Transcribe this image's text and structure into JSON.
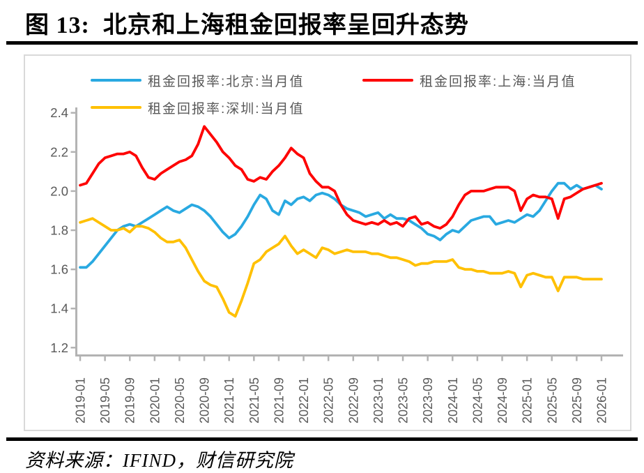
{
  "header": {
    "title": "图 13:  北京和上海租金回报率呈回升态势"
  },
  "footer": {
    "source": "资料来源：IFIND，财信研究院"
  },
  "chart_data": {
    "type": "line",
    "title": "",
    "xlabel": "",
    "ylabel": "",
    "ylim": [
      1.2,
      2.4
    ],
    "y_ticks": [
      "2.4",
      "2.2",
      "2.0",
      "1.8",
      "1.6",
      "1.4",
      "1.2"
    ],
    "x_tick_labels": [
      "2019-01",
      "2019-05",
      "2019-09",
      "2020-01",
      "2020-05",
      "2020-09",
      "2021-01",
      "2021-05",
      "2021-09",
      "2022-01",
      "2022-05",
      "2022-09",
      "2023-01",
      "2023-05",
      "2023-09",
      "2024-01",
      "2024-05",
      "2024-09",
      "2025-01",
      "2025-05",
      "2025-09",
      "2026-01"
    ],
    "x": [
      "2019-01",
      "2019-02",
      "2019-03",
      "2019-04",
      "2019-05",
      "2019-06",
      "2019-07",
      "2019-08",
      "2019-09",
      "2019-10",
      "2019-11",
      "2019-12",
      "2020-01",
      "2020-02",
      "2020-03",
      "2020-04",
      "2020-05",
      "2020-06",
      "2020-07",
      "2020-08",
      "2020-09",
      "2020-10",
      "2020-11",
      "2020-12",
      "2021-01",
      "2021-02",
      "2021-03",
      "2021-04",
      "2021-05",
      "2021-06",
      "2021-07",
      "2021-08",
      "2021-09",
      "2021-10",
      "2021-11",
      "2021-12",
      "2022-01",
      "2022-02",
      "2022-03",
      "2022-04",
      "2022-05",
      "2022-06",
      "2022-07",
      "2022-08",
      "2022-09",
      "2022-10",
      "2022-11",
      "2022-12",
      "2023-01",
      "2023-02",
      "2023-03",
      "2023-04",
      "2023-05",
      "2023-06",
      "2023-07",
      "2023-08",
      "2023-09",
      "2023-10",
      "2023-11",
      "2023-12",
      "2024-01",
      "2024-02",
      "2024-03",
      "2024-04",
      "2024-05",
      "2024-06",
      "2024-07",
      "2024-08",
      "2024-09",
      "2024-10",
      "2024-11",
      "2024-12",
      "2025-01",
      "2025-02",
      "2025-03",
      "2025-04",
      "2025-05",
      "2025-06",
      "2025-07",
      "2025-08",
      "2025-09",
      "2025-10",
      "2025-11",
      "2025-12",
      "2026-01"
    ],
    "grid": false,
    "legend_position": "top-inside",
    "axis_color": "#B3B3B3",
    "tick_label_color": "#595959",
    "series": [
      {
        "name": "租金回报率:北京:当月值",
        "color": "#29A9E1",
        "values": [
          1.61,
          1.61,
          1.64,
          1.68,
          1.72,
          1.76,
          1.8,
          1.82,
          1.83,
          1.82,
          1.84,
          1.86,
          1.88,
          1.9,
          1.92,
          1.9,
          1.89,
          1.91,
          1.93,
          1.92,
          1.9,
          1.87,
          1.83,
          1.79,
          1.76,
          1.78,
          1.82,
          1.87,
          1.93,
          1.98,
          1.96,
          1.9,
          1.88,
          1.95,
          1.93,
          1.96,
          1.97,
          1.95,
          1.98,
          1.99,
          1.98,
          1.96,
          1.93,
          1.91,
          1.9,
          1.89,
          1.87,
          1.88,
          1.89,
          1.86,
          1.88,
          1.86,
          1.86,
          1.85,
          1.83,
          1.81,
          1.78,
          1.77,
          1.75,
          1.78,
          1.8,
          1.79,
          1.82,
          1.85,
          1.86,
          1.87,
          1.87,
          1.83,
          1.84,
          1.85,
          1.84,
          1.86,
          1.88,
          1.87,
          1.9,
          1.95,
          2.0,
          2.04,
          2.04,
          2.01,
          2.03,
          2.01,
          2.02,
          2.03,
          2.01
        ]
      },
      {
        "name": "租金回报率:上海:当月值",
        "color": "#FE0000",
        "values": [
          2.03,
          2.04,
          2.09,
          2.14,
          2.17,
          2.18,
          2.19,
          2.19,
          2.2,
          2.18,
          2.12,
          2.07,
          2.06,
          2.09,
          2.11,
          2.13,
          2.15,
          2.16,
          2.18,
          2.24,
          2.33,
          2.29,
          2.25,
          2.2,
          2.17,
          2.13,
          2.11,
          2.06,
          2.05,
          2.07,
          2.06,
          2.1,
          2.13,
          2.17,
          2.22,
          2.19,
          2.17,
          2.09,
          2.05,
          2.02,
          2.02,
          2.0,
          1.93,
          1.88,
          1.85,
          1.84,
          1.83,
          1.84,
          1.83,
          1.85,
          1.83,
          1.84,
          1.82,
          1.86,
          1.87,
          1.83,
          1.84,
          1.82,
          1.81,
          1.83,
          1.87,
          1.93,
          1.98,
          2.0,
          2.0,
          2.0,
          2.01,
          2.02,
          2.02,
          2.02,
          2.0,
          1.9,
          1.96,
          1.98,
          1.97,
          1.97,
          1.96,
          1.86,
          1.96,
          1.97,
          1.99,
          2.01,
          2.02,
          2.03,
          2.04
        ]
      },
      {
        "name": "租金回报率:深圳:当月值",
        "color": "#FFC000",
        "values": [
          1.84,
          1.85,
          1.86,
          1.84,
          1.82,
          1.8,
          1.8,
          1.81,
          1.79,
          1.82,
          1.82,
          1.81,
          1.79,
          1.76,
          1.74,
          1.74,
          1.75,
          1.71,
          1.65,
          1.59,
          1.54,
          1.52,
          1.51,
          1.45,
          1.38,
          1.36,
          1.44,
          1.53,
          1.63,
          1.65,
          1.69,
          1.71,
          1.73,
          1.77,
          1.72,
          1.68,
          1.7,
          1.68,
          1.66,
          1.71,
          1.7,
          1.68,
          1.69,
          1.7,
          1.69,
          1.69,
          1.69,
          1.68,
          1.68,
          1.67,
          1.66,
          1.66,
          1.65,
          1.64,
          1.62,
          1.63,
          1.63,
          1.64,
          1.64,
          1.64,
          1.65,
          1.61,
          1.6,
          1.6,
          1.59,
          1.59,
          1.58,
          1.58,
          1.58,
          1.59,
          1.58,
          1.51,
          1.57,
          1.58,
          1.57,
          1.56,
          1.56,
          1.49,
          1.56,
          1.56,
          1.56,
          1.55,
          1.55,
          1.55,
          1.55
        ]
      }
    ]
  }
}
